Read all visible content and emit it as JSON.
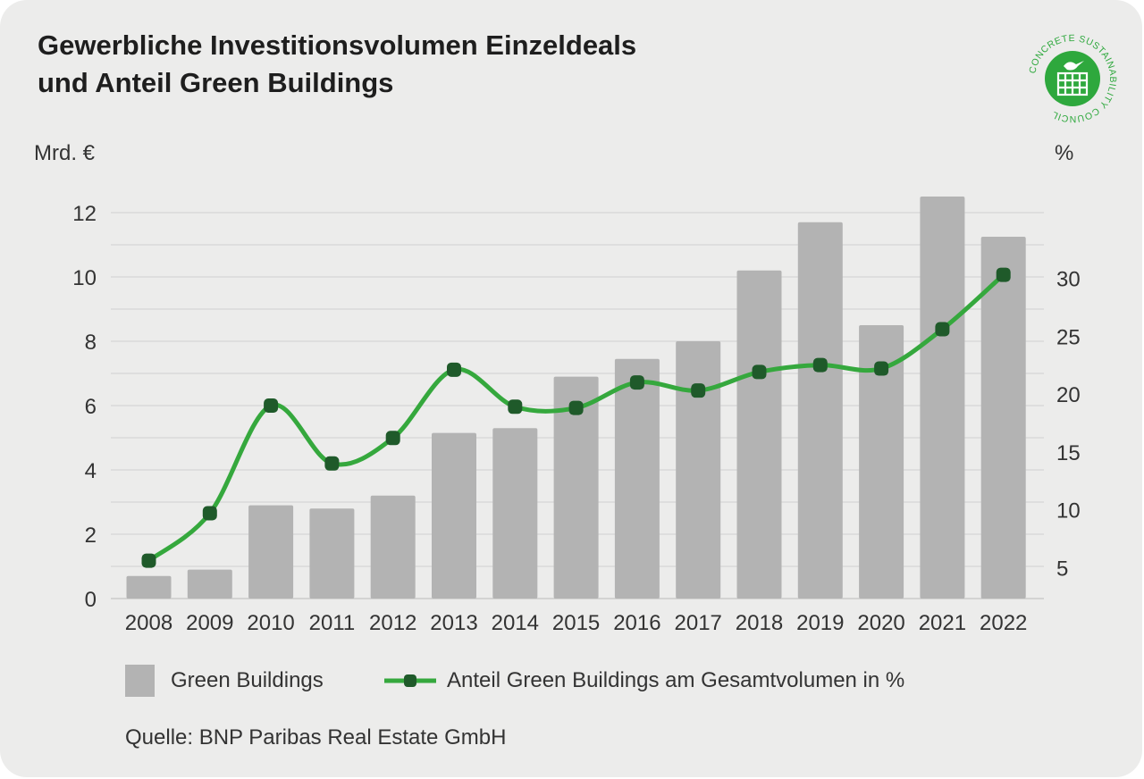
{
  "title": {
    "line1": "Gewerbliche Investitionsvolumen Einzeldeals",
    "line2": "und Anteil Green Buildings"
  },
  "logo": {
    "text": "CONCRETE SUSTAINABILITY COUNCIL",
    "color": "#2ea83d"
  },
  "axes": {
    "left_unit": "Mrd. €",
    "right_unit": "%"
  },
  "legend": {
    "bars_label": "Green Buildings",
    "line_label": "Anteil Green Buildings am Gesamtvolumen in %"
  },
  "source": "Quelle: BNP Paribas Real Estate GmbH",
  "colors": {
    "bar": "#b3b3b3",
    "line": "#35a83d",
    "marker": "#1f5a2a",
    "grid": "#d6d6d6",
    "background": "#ececeb"
  },
  "chart_data": {
    "type": "bar",
    "categories": [
      "2008",
      "2009",
      "2010",
      "2011",
      "2012",
      "2013",
      "2014",
      "2015",
      "2016",
      "2017",
      "2018",
      "2019",
      "2020",
      "2021",
      "2022"
    ],
    "series": [
      {
        "name": "Green Buildings",
        "type": "bar",
        "axis": "left",
        "values": [
          0.7,
          0.9,
          2.9,
          2.8,
          3.2,
          5.15,
          5.3,
          6.9,
          7.45,
          8.0,
          10.2,
          11.7,
          8.5,
          12.5,
          11.25
        ]
      },
      {
        "name": "Anteil Green Buildings am Gesamtvolumen in %",
        "type": "line",
        "axis": "right",
        "values": [
          5.6,
          9.7,
          19.0,
          14.0,
          16.2,
          22.1,
          18.9,
          18.8,
          21.0,
          20.3,
          21.9,
          22.5,
          22.2,
          25.6,
          30.3
        ]
      }
    ],
    "y_left": {
      "ticks": [
        0,
        2,
        4,
        6,
        8,
        10,
        12
      ],
      "ylim": [
        0,
        12
      ]
    },
    "y_right": {
      "ticks": [
        5,
        10,
        15,
        20,
        25,
        30
      ],
      "ylim": [
        2.33,
        35.67
      ]
    },
    "grid": true,
    "legend_position": "bottom"
  }
}
